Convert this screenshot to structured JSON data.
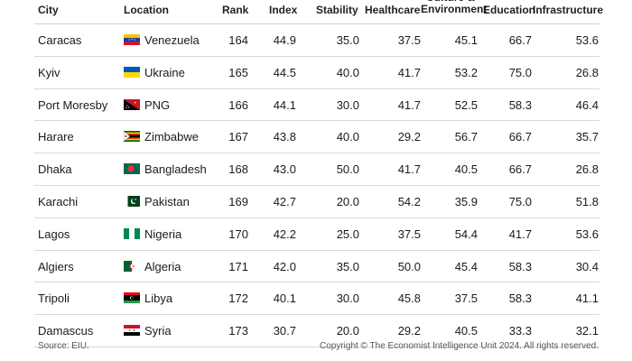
{
  "columns": {
    "city": "City",
    "location": "Location",
    "rank": "Rank",
    "index": "Index",
    "stability": "Stability",
    "healthcare": "Healthcare",
    "culture": "Culture & Environment",
    "education": "Education",
    "infrastructure": "Infrastructure"
  },
  "rows": [
    {
      "city": "Caracas",
      "country": "Venezuela",
      "flag": "venezuela-flag-icon",
      "rank": "164",
      "index": "44.9",
      "stability": "35.0",
      "healthcare": "37.5",
      "culture": "45.1",
      "education": "66.7",
      "infrastructure": "53.6"
    },
    {
      "city": "Kyiv",
      "country": "Ukraine",
      "flag": "ukraine-flag-icon",
      "rank": "165",
      "index": "44.5",
      "stability": "40.0",
      "healthcare": "41.7",
      "culture": "53.2",
      "education": "75.0",
      "infrastructure": "26.8"
    },
    {
      "city": "Port Moresby",
      "country": "PNG",
      "flag": "png-flag-icon",
      "rank": "166",
      "index": "44.1",
      "stability": "30.0",
      "healthcare": "41.7",
      "culture": "52.5",
      "education": "58.3",
      "infrastructure": "46.4"
    },
    {
      "city": "Harare",
      "country": "Zimbabwe",
      "flag": "zimbabwe-flag-icon",
      "rank": "167",
      "index": "43.8",
      "stability": "40.0",
      "healthcare": "29.2",
      "culture": "56.7",
      "education": "66.7",
      "infrastructure": "35.7"
    },
    {
      "city": "Dhaka",
      "country": "Bangladesh",
      "flag": "bangladesh-flag-icon",
      "rank": "168",
      "index": "43.0",
      "stability": "50.0",
      "healthcare": "41.7",
      "culture": "40.5",
      "education": "66.7",
      "infrastructure": "26.8"
    },
    {
      "city": "Karachi",
      "country": "Pakistan",
      "flag": "pakistan-flag-icon",
      "rank": "169",
      "index": "42.7",
      "stability": "20.0",
      "healthcare": "54.2",
      "culture": "35.9",
      "education": "75.0",
      "infrastructure": "51.8"
    },
    {
      "city": "Lagos",
      "country": "Nigeria",
      "flag": "nigeria-flag-icon",
      "rank": "170",
      "index": "42.2",
      "stability": "25.0",
      "healthcare": "37.5",
      "culture": "54.4",
      "education": "41.7",
      "infrastructure": "53.6"
    },
    {
      "city": "Algiers",
      "country": "Algeria",
      "flag": "algeria-flag-icon",
      "rank": "171",
      "index": "42.0",
      "stability": "35.0",
      "healthcare": "50.0",
      "culture": "45.4",
      "education": "58.3",
      "infrastructure": "30.4"
    },
    {
      "city": "Tripoli",
      "country": "Libya",
      "flag": "libya-flag-icon",
      "rank": "172",
      "index": "40.1",
      "stability": "30.0",
      "healthcare": "45.8",
      "culture": "37.5",
      "education": "58.3",
      "infrastructure": "41.1"
    },
    {
      "city": "Damascus",
      "country": "Syria",
      "flag": "syria-flag-icon",
      "rank": "173",
      "index": "30.7",
      "stability": "20.0",
      "healthcare": "29.2",
      "culture": "40.5",
      "education": "33.3",
      "infrastructure": "32.1"
    }
  ],
  "footer": {
    "source": "Source: EIU.",
    "copyright": "Copyright © The Economist Intelligence Unit 2024. All rights reserved."
  }
}
